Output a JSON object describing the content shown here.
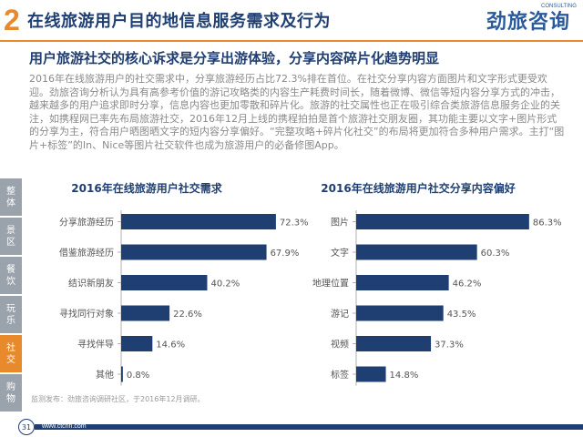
{
  "header": {
    "section_number": "2",
    "title": "在线旅游用户目的地信息服务需求及行为",
    "logo_text": "劲旅咨询",
    "logo_sub": "CONSULTING"
  },
  "subtitle": "用户旅游社交的核心诉求是分享出游体验，分享内容碎片化趋势明显",
  "body_text": "2016年在线旅游用户的社交需求中，分享旅游经历占比72.3%排在首位。在社交分享内容方面图片和文字形式更受欢迎。劲旅咨询分析认为具有高参考价值的游记攻略类的内容生产耗费时间长，随着微博、微信等短内容分享方式的冲击，越来越多的用户追求即时分享，信息内容也更加零散和碎片化。旅游的社交属性也正在吸引综合类旅游信息服务企业的关注，如携程网已率先布局旅游社交，2016年12月上线的携程拍拍是首个旅游社交朋友圈，其功能主要以文字+图片形式的分享为主，符合用户晒图晒文字的短内容分享偏好。“完整攻略+碎片化社交”的布局将更加符合多种用户需求。主打“图片+标签”的In、Nice等图片社交软件也成为旅游用户的必备修图App。",
  "side_nav": [
    {
      "label": "整体",
      "active": false
    },
    {
      "label": "景区",
      "active": false
    },
    {
      "label": "餐饮",
      "active": false
    },
    {
      "label": "玩乐",
      "active": false
    },
    {
      "label": "社交",
      "active": true
    },
    {
      "label": "购物",
      "active": false
    }
  ],
  "colors": {
    "bar": "#1f3f73",
    "accent": "#e8892b",
    "nav_gray": "#9aa2ab"
  },
  "chart_data": [
    {
      "type": "bar",
      "orientation": "horizontal",
      "title": "2016年在线旅游用户社交需求",
      "categories": [
        "分享旅游经历",
        "借鉴旅游经历",
        "结识新朋友",
        "寻找同行对象",
        "寻找伴导",
        "其他"
      ],
      "values": [
        72.3,
        67.9,
        40.2,
        22.6,
        14.6,
        0.8
      ],
      "value_suffix": "%",
      "xlim": [
        0,
        100
      ]
    },
    {
      "type": "bar",
      "orientation": "horizontal",
      "title": "2016年在线旅游用户社交分享内容偏好",
      "categories": [
        "图片",
        "文字",
        "地理位置",
        "游记",
        "视频",
        "标签"
      ],
      "values": [
        86.3,
        60.3,
        46.2,
        43.5,
        37.3,
        14.8
      ],
      "value_suffix": "%",
      "xlim": [
        0,
        100
      ]
    }
  ],
  "source": "监测发布：劲旅咨询调研社区，于2016年12月调研。",
  "footer": {
    "page_number": "31",
    "site": "www.ctcnn.com"
  }
}
